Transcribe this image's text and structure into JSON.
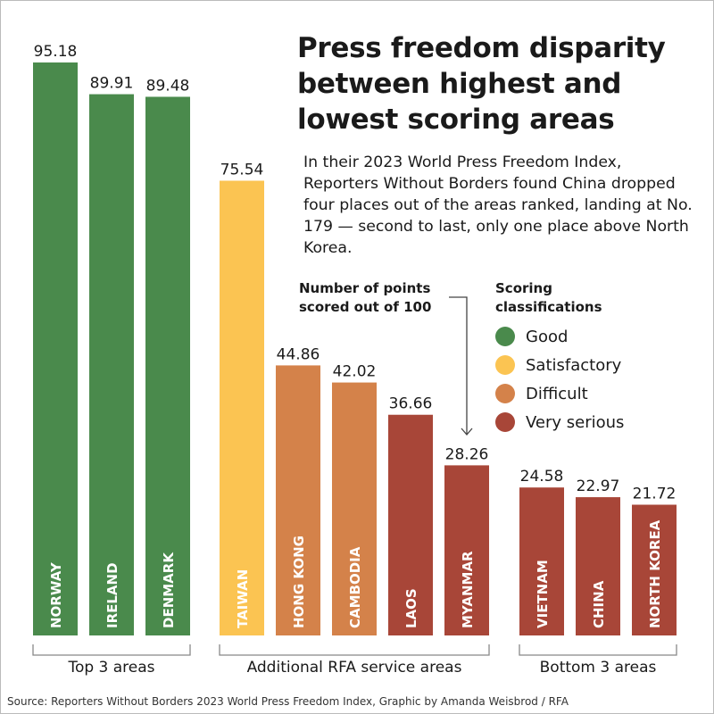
{
  "title": "Press freedom disparity between highest and lowest scoring areas",
  "description": "In their 2023 World Press Freedom Index, Reporters Without Borders found China dropped four places out of the areas ranked, landing at No. 179 — second to last, only one place above North Korea.",
  "points_note": "Number of points scored out of 100",
  "legend": {
    "title": "Scoring classifications",
    "items": [
      {
        "label": "Good",
        "color": "#4a8a4c"
      },
      {
        "label": "Satisfactory",
        "color": "#fbc452"
      },
      {
        "label": "Difficult",
        "color": "#d4824a"
      },
      {
        "label": "Very serious",
        "color": "#a84638"
      }
    ]
  },
  "source": "Source: Reporters Without Borders 2023 World Press Freedom Index, Graphic by Amanda Weisbrod / RFA",
  "chart_data": {
    "type": "bar",
    "ylim": [
      0,
      100
    ],
    "grid": false,
    "groups": [
      "Top 3 areas",
      "Additional RFA service areas",
      "Bottom 3 areas"
    ],
    "categories": [
      "NORWAY",
      "IRELAND",
      "DENMARK",
      "TAIWAN",
      "HONG KONG",
      "CAMBODIA",
      "LAOS",
      "MYANMAR",
      "VIETNAM",
      "CHINA",
      "NORTH KOREA"
    ],
    "values": [
      95.18,
      89.91,
      89.48,
      75.54,
      44.86,
      42.02,
      36.66,
      28.26,
      24.58,
      22.97,
      21.72
    ],
    "value_labels": [
      "95.18",
      "89.91",
      "89.48",
      "75.54",
      "44.86",
      "42.02",
      "36.66",
      "28.26",
      "24.58",
      "22.97",
      "21.72"
    ],
    "classification": [
      "Good",
      "Good",
      "Good",
      "Satisfactory",
      "Difficult",
      "Difficult",
      "Very serious",
      "Very serious",
      "Very serious",
      "Very serious",
      "Very serious"
    ],
    "group_of": [
      0,
      0,
      0,
      1,
      1,
      1,
      1,
      1,
      2,
      2,
      2
    ]
  }
}
